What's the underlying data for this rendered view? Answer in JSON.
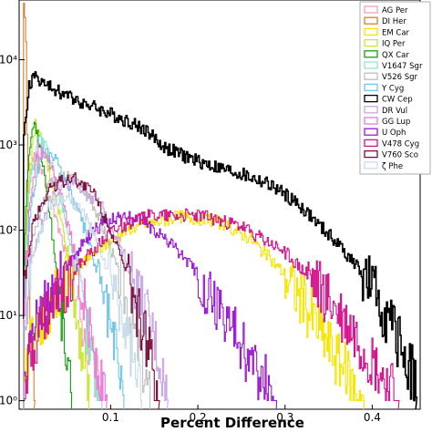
{
  "chart_data": {
    "type": "line",
    "title": "",
    "xlabel": "Percent Difference",
    "ylabel": "",
    "xlim": [
      -0.005,
      0.455
    ],
    "ylim_log10": [
      -0.1,
      4.7
    ],
    "yscale": "log",
    "grid": false,
    "legend_position": "top-right",
    "x_ticks": [
      {
        "value": 0.1,
        "label": "0.1"
      },
      {
        "value": 0.2,
        "label": "0.2"
      },
      {
        "value": 0.3,
        "label": "0.3"
      },
      {
        "value": 0.4,
        "label": "0.4"
      }
    ],
    "y_ticks": [
      {
        "value": 1,
        "label": "10⁰"
      },
      {
        "value": 10,
        "label": "10¹"
      },
      {
        "value": 100,
        "label": "10²"
      },
      {
        "value": 1000,
        "label": "10³"
      },
      {
        "value": 10000,
        "label": "10⁴"
      }
    ],
    "series": [
      {
        "name": "AG Per",
        "color": "#f4a3b6",
        "points": [
          [
            0.0,
            25
          ],
          [
            0.005,
            280
          ],
          [
            0.012,
            900
          ],
          [
            0.02,
            500
          ],
          [
            0.035,
            160
          ],
          [
            0.05,
            45
          ],
          [
            0.065,
            10
          ],
          [
            0.08,
            2.5
          ],
          [
            0.09,
            1
          ]
        ]
      },
      {
        "name": "DI Her",
        "color": "#d9822b",
        "points": [
          [
            0.0,
            40000
          ],
          [
            0.002,
            30000
          ],
          [
            0.005,
            80
          ],
          [
            0.008,
            5
          ],
          [
            0.012,
            1
          ]
        ]
      },
      {
        "name": "EM Car",
        "color": "#f5e600",
        "points": [
          [
            0.0,
            3
          ],
          [
            0.03,
            14
          ],
          [
            0.07,
            45
          ],
          [
            0.12,
            105
          ],
          [
            0.18,
            145
          ],
          [
            0.22,
            130
          ],
          [
            0.26,
            80
          ],
          [
            0.3,
            30
          ],
          [
            0.33,
            10
          ],
          [
            0.36,
            3
          ],
          [
            0.39,
            1
          ]
        ]
      },
      {
        "name": "IQ Per",
        "color": "#c9e834",
        "points": [
          [
            0.0,
            30
          ],
          [
            0.005,
            350
          ],
          [
            0.013,
            1700
          ],
          [
            0.02,
            1100
          ],
          [
            0.035,
            280
          ],
          [
            0.05,
            60
          ],
          [
            0.06,
            12
          ],
          [
            0.07,
            2.5
          ],
          [
            0.075,
            1
          ]
        ]
      },
      {
        "name": "QX Car",
        "color": "#12a012",
        "points": [
          [
            0.0,
            40
          ],
          [
            0.004,
            500
          ],
          [
            0.012,
            2000
          ],
          [
            0.02,
            800
          ],
          [
            0.03,
            150
          ],
          [
            0.04,
            20
          ],
          [
            0.05,
            3
          ],
          [
            0.055,
            1
          ]
        ]
      },
      {
        "name": "V1647 Sgr",
        "color": "#8ee6d0",
        "points": [
          [
            0.0,
            20
          ],
          [
            0.006,
            300
          ],
          [
            0.016,
            1300
          ],
          [
            0.026,
            900
          ],
          [
            0.04,
            300
          ],
          [
            0.055,
            60
          ],
          [
            0.07,
            10
          ],
          [
            0.08,
            2.5
          ],
          [
            0.09,
            1
          ]
        ]
      },
      {
        "name": "V526 Sgr",
        "color": "#bfbfbf",
        "points": [
          [
            0.0,
            8
          ],
          [
            0.01,
            80
          ],
          [
            0.03,
            380
          ],
          [
            0.055,
            420
          ],
          [
            0.08,
            200
          ],
          [
            0.1,
            60
          ],
          [
            0.12,
            12
          ],
          [
            0.135,
            3
          ],
          [
            0.145,
            1
          ]
        ]
      },
      {
        "name": "Y Cyg",
        "color": "#72c6e8",
        "points": [
          [
            0.0,
            15
          ],
          [
            0.008,
            200
          ],
          [
            0.02,
            800
          ],
          [
            0.035,
            700
          ],
          [
            0.05,
            350
          ],
          [
            0.07,
            100
          ],
          [
            0.09,
            20
          ],
          [
            0.105,
            4
          ],
          [
            0.115,
            1
          ]
        ]
      },
      {
        "name": "CW Cep",
        "color": "#000000",
        "points": [
          [
            0.0,
            1200
          ],
          [
            0.006,
            5000
          ],
          [
            0.012,
            6500
          ],
          [
            0.025,
            5000
          ],
          [
            0.05,
            3800
          ],
          [
            0.08,
            2800
          ],
          [
            0.11,
            2100
          ],
          [
            0.14,
            1500
          ],
          [
            0.16,
            950
          ],
          [
            0.19,
            700
          ],
          [
            0.22,
            550
          ],
          [
            0.25,
            450
          ],
          [
            0.28,
            350
          ],
          [
            0.3,
            260
          ],
          [
            0.32,
            180
          ],
          [
            0.34,
            110
          ],
          [
            0.36,
            70
          ],
          [
            0.38,
            40
          ],
          [
            0.4,
            20
          ],
          [
            0.42,
            8
          ],
          [
            0.44,
            3
          ],
          [
            0.45,
            1.5
          ]
        ]
      },
      {
        "name": "DR Vul",
        "color": "#c8a8e6",
        "points": [
          [
            0.0,
            6
          ],
          [
            0.01,
            50
          ],
          [
            0.03,
            250
          ],
          [
            0.05,
            360
          ],
          [
            0.07,
            310
          ],
          [
            0.09,
            180
          ],
          [
            0.11,
            70
          ],
          [
            0.13,
            20
          ],
          [
            0.15,
            5
          ],
          [
            0.165,
            1
          ]
        ]
      },
      {
        "name": "GG Lup",
        "color": "#f07ad8",
        "points": [
          [
            0.0,
            10
          ],
          [
            0.006,
            150
          ],
          [
            0.016,
            900
          ],
          [
            0.028,
            650
          ],
          [
            0.045,
            200
          ],
          [
            0.06,
            45
          ],
          [
            0.075,
            8
          ],
          [
            0.085,
            2
          ],
          [
            0.095,
            1
          ]
        ]
      },
      {
        "name": "U Oph",
        "color": "#9a1ad6",
        "points": [
          [
            0.0,
            3
          ],
          [
            0.02,
            10
          ],
          [
            0.05,
            40
          ],
          [
            0.08,
            100
          ],
          [
            0.11,
            150
          ],
          [
            0.14,
            120
          ],
          [
            0.17,
            70
          ],
          [
            0.2,
            30
          ],
          [
            0.23,
            10
          ],
          [
            0.26,
            3
          ],
          [
            0.29,
            1
          ]
        ]
      },
      {
        "name": "V478 Cyg",
        "color": "#d4138c",
        "points": [
          [
            0.0,
            2
          ],
          [
            0.02,
            8
          ],
          [
            0.06,
            35
          ],
          [
            0.1,
            100
          ],
          [
            0.15,
            155
          ],
          [
            0.2,
            150
          ],
          [
            0.25,
            110
          ],
          [
            0.3,
            55
          ],
          [
            0.34,
            20
          ],
          [
            0.38,
            6
          ],
          [
            0.41,
            2
          ],
          [
            0.43,
            1
          ]
        ]
      },
      {
        "name": "V760 Sco",
        "color": "#7a0f3c",
        "points": [
          [
            0.0,
            15
          ],
          [
            0.01,
            120
          ],
          [
            0.03,
            320
          ],
          [
            0.055,
            420
          ],
          [
            0.08,
            280
          ],
          [
            0.1,
            100
          ],
          [
            0.12,
            25
          ],
          [
            0.14,
            5
          ],
          [
            0.155,
            1
          ]
        ]
      },
      {
        "name": "ζ Phe",
        "color": "#c9dcea",
        "points": [
          [
            0.0,
            6
          ],
          [
            0.01,
            50
          ],
          [
            0.03,
            200
          ],
          [
            0.05,
            250
          ],
          [
            0.07,
            150
          ],
          [
            0.09,
            50
          ],
          [
            0.11,
            12
          ],
          [
            0.125,
            3
          ],
          [
            0.135,
            1
          ]
        ]
      }
    ]
  }
}
